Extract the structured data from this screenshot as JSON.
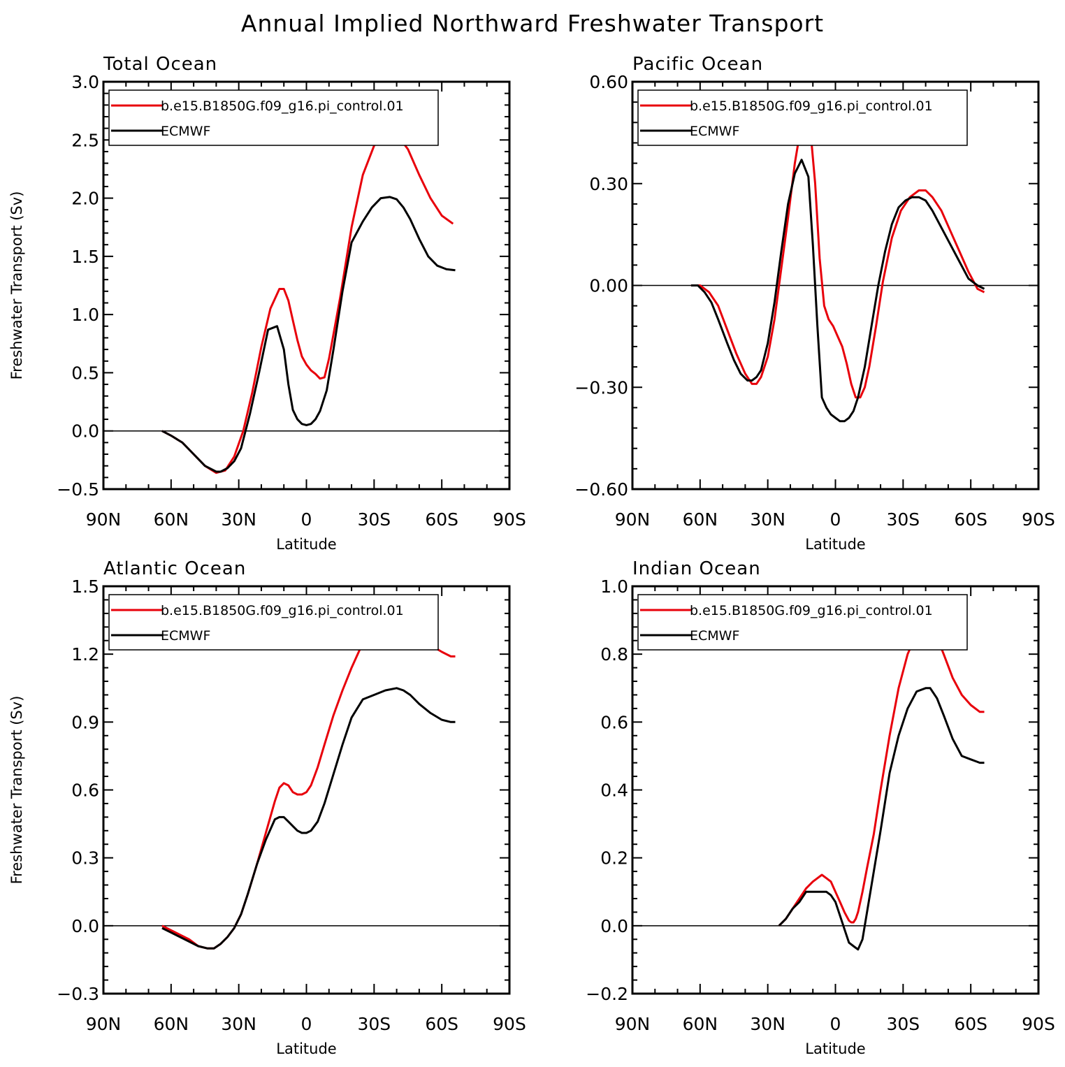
{
  "figure": {
    "title": "Annual Implied Northward Freshwater Transport"
  },
  "chart_data": [
    {
      "type": "line",
      "title": "Total Ocean",
      "xlabel": "Latitude",
      "ylabel": "Freshwater Transport (Sv)",
      "xlim": [
        -90,
        90
      ],
      "ylim": [
        -0.5,
        3.0
      ],
      "x_direction": "north-to-south (positive x = degrees south)",
      "xticks": [
        -90,
        -60,
        -30,
        0,
        30,
        60,
        90
      ],
      "xtick_labels": [
        "90N",
        "60N",
        "30N",
        "0",
        "30S",
        "60S",
        "90S"
      ],
      "yticks": [
        -0.5,
        0.0,
        0.5,
        1.0,
        1.5,
        2.0,
        2.5,
        3.0
      ],
      "ytick_labels": [
        "−0.5",
        "0.0",
        "0.5",
        "1.0",
        "1.5",
        "2.0",
        "2.5",
        "3.0"
      ],
      "zero_line": true,
      "legend": "top-left",
      "series": [
        {
          "name": "b.e15.B1850G.f09_g16.pi_control.01",
          "color": "#e8000b",
          "x": [
            -64,
            -60,
            -55,
            -50,
            -45,
            -40,
            -36,
            -32,
            -28,
            -24,
            -20,
            -16,
            -12,
            -10,
            -8,
            -6,
            -4,
            -2,
            0,
            2,
            4,
            6,
            8,
            10,
            15,
            20,
            25,
            30,
            35,
            40,
            45,
            50,
            55,
            60,
            65
          ],
          "y": [
            0,
            -0.04,
            -0.1,
            -0.2,
            -0.3,
            -0.36,
            -0.34,
            -0.22,
            0,
            0.33,
            0.72,
            1.05,
            1.22,
            1.22,
            1.12,
            0.95,
            0.78,
            0.64,
            0.57,
            0.52,
            0.49,
            0.45,
            0.46,
            0.62,
            1.15,
            1.75,
            2.2,
            2.45,
            2.55,
            2.55,
            2.42,
            2.2,
            2.0,
            1.85,
            1.78
          ]
        },
        {
          "name": "ECMWF",
          "color": "#000000",
          "x": [
            -64,
            -60,
            -55,
            -50,
            -45,
            -40,
            -38,
            -35,
            -32,
            -29,
            -25,
            -21,
            -17,
            -13,
            -10,
            -8,
            -6,
            -4,
            -2,
            0,
            2,
            4,
            6,
            9,
            12,
            16,
            20,
            25,
            29,
            33,
            37,
            40,
            43,
            46,
            50,
            54,
            58,
            62,
            66
          ],
          "y": [
            0,
            -0.04,
            -0.1,
            -0.2,
            -0.3,
            -0.35,
            -0.35,
            -0.32,
            -0.26,
            -0.15,
            0.15,
            0.5,
            0.87,
            0.9,
            0.7,
            0.4,
            0.18,
            0.1,
            0.06,
            0.05,
            0.06,
            0.1,
            0.17,
            0.35,
            0.7,
            1.2,
            1.62,
            1.8,
            1.92,
            2.0,
            2.01,
            1.99,
            1.92,
            1.82,
            1.65,
            1.5,
            1.42,
            1.39,
            1.38
          ]
        }
      ]
    },
    {
      "type": "line",
      "title": "Pacific Ocean",
      "xlabel": "Latitude",
      "ylabel": "",
      "xlim": [
        -90,
        90
      ],
      "ylim": [
        -0.6,
        0.6
      ],
      "x_direction": "north-to-south (positive x = degrees south)",
      "xticks": [
        -90,
        -60,
        -30,
        0,
        30,
        60,
        90
      ],
      "xtick_labels": [
        "90N",
        "60N",
        "30N",
        "0",
        "30S",
        "60S",
        "90S"
      ],
      "yticks": [
        -0.6,
        -0.3,
        0.0,
        0.3,
        0.6
      ],
      "ytick_labels": [
        "−0.60",
        "−0.30",
        "0.00",
        "0.30",
        "0.60"
      ],
      "zero_line": true,
      "legend": "top-left",
      "series": [
        {
          "name": "b.e15.B1850G.f09_g16.pi_control.01",
          "color": "#e8000b",
          "x": [
            -64,
            -60,
            -56,
            -52,
            -48,
            -44,
            -40,
            -37,
            -35,
            -33,
            -30,
            -27,
            -24,
            -21,
            -18,
            -15,
            -13,
            -11,
            -9,
            -7,
            -5,
            -3,
            -1,
            1,
            3,
            5,
            7,
            9,
            11,
            13,
            15,
            18,
            21,
            25,
            29,
            33,
            37,
            40,
            43,
            47,
            51,
            55,
            59,
            63,
            66
          ],
          "y": [
            0,
            0,
            -0.02,
            -0.06,
            -0.13,
            -0.2,
            -0.26,
            -0.29,
            -0.29,
            -0.27,
            -0.21,
            -0.1,
            0.05,
            0.2,
            0.36,
            0.48,
            0.5,
            0.45,
            0.3,
            0.08,
            -0.06,
            -0.1,
            -0.12,
            -0.15,
            -0.18,
            -0.23,
            -0.29,
            -0.33,
            -0.33,
            -0.3,
            -0.24,
            -0.12,
            0.01,
            0.14,
            0.22,
            0.26,
            0.28,
            0.28,
            0.26,
            0.22,
            0.16,
            0.1,
            0.04,
            -0.01,
            -0.02
          ]
        },
        {
          "name": "ECMWF",
          "color": "#000000",
          "x": [
            -64,
            -61,
            -58,
            -55,
            -52,
            -48,
            -45,
            -42,
            -39,
            -37,
            -35,
            -33,
            -30,
            -27,
            -24,
            -21,
            -18,
            -15,
            -12,
            -10,
            -8,
            -6,
            -4,
            -2,
            0,
            2,
            4,
            6,
            8,
            10,
            13,
            16,
            19,
            22,
            25,
            28,
            31,
            34,
            37,
            40,
            43,
            47,
            51,
            55,
            59,
            63,
            66
          ],
          "y": [
            0,
            0,
            -0.02,
            -0.05,
            -0.1,
            -0.17,
            -0.22,
            -0.26,
            -0.28,
            -0.28,
            -0.27,
            -0.25,
            -0.17,
            -0.05,
            0.1,
            0.24,
            0.33,
            0.37,
            0.32,
            0.12,
            -0.12,
            -0.33,
            -0.36,
            -0.38,
            -0.39,
            -0.4,
            -0.4,
            -0.39,
            -0.37,
            -0.33,
            -0.24,
            -0.12,
            0.0,
            0.1,
            0.18,
            0.23,
            0.25,
            0.26,
            0.26,
            0.25,
            0.22,
            0.17,
            0.12,
            0.07,
            0.02,
            0.0,
            -0.01
          ]
        }
      ]
    },
    {
      "type": "line",
      "title": "Atlantic Ocean",
      "xlabel": "Latitude",
      "ylabel": "Freshwater Transport (Sv)",
      "xlim": [
        -90,
        90
      ],
      "ylim": [
        -0.3,
        1.5
      ],
      "x_direction": "north-to-south (positive x = degrees south)",
      "xticks": [
        -90,
        -60,
        -30,
        0,
        30,
        60,
        90
      ],
      "xtick_labels": [
        "90N",
        "60N",
        "30N",
        "0",
        "30S",
        "60S",
        "90S"
      ],
      "yticks": [
        -0.3,
        0.0,
        0.3,
        0.6,
        0.9,
        1.2,
        1.5
      ],
      "ytick_labels": [
        "−0.3",
        "0.0",
        "0.3",
        "0.6",
        "0.9",
        "1.2",
        "1.5"
      ],
      "zero_line": true,
      "legend": "top-left",
      "series": [
        {
          "name": "b.e15.B1850G.f09_g16.pi_control.01",
          "color": "#e8000b",
          "x": [
            -64,
            -60,
            -56,
            -52,
            -48,
            -44,
            -41,
            -38,
            -35,
            -32,
            -29,
            -26,
            -22,
            -18,
            -14,
            -12,
            -10,
            -8,
            -6,
            -4,
            -2,
            0,
            2,
            5,
            8,
            12,
            16,
            20,
            25,
            30,
            35,
            40,
            45,
            50,
            55,
            60,
            64,
            66
          ],
          "y": [
            0,
            -0.02,
            -0.04,
            -0.06,
            -0.09,
            -0.1,
            -0.1,
            -0.08,
            -0.05,
            -0.01,
            0.05,
            0.14,
            0.27,
            0.41,
            0.55,
            0.61,
            0.63,
            0.62,
            0.59,
            0.58,
            0.58,
            0.59,
            0.62,
            0.7,
            0.8,
            0.93,
            1.04,
            1.14,
            1.25,
            1.33,
            1.38,
            1.39,
            1.35,
            1.29,
            1.24,
            1.21,
            1.19,
            1.19
          ]
        },
        {
          "name": "ECMWF",
          "color": "#000000",
          "x": [
            -64,
            -60,
            -56,
            -52,
            -48,
            -44,
            -41,
            -38,
            -35,
            -32,
            -29,
            -26,
            -22,
            -18,
            -14,
            -12,
            -10,
            -8,
            -6,
            -4,
            -2,
            0,
            2,
            5,
            8,
            12,
            16,
            20,
            25,
            30,
            35,
            40,
            43,
            46,
            50,
            55,
            60,
            64,
            66
          ],
          "y": [
            -0.01,
            -0.03,
            -0.05,
            -0.07,
            -0.09,
            -0.1,
            -0.1,
            -0.08,
            -0.05,
            -0.01,
            0.05,
            0.14,
            0.27,
            0.38,
            0.47,
            0.48,
            0.48,
            0.46,
            0.44,
            0.42,
            0.41,
            0.41,
            0.42,
            0.46,
            0.54,
            0.67,
            0.8,
            0.92,
            1.0,
            1.02,
            1.04,
            1.05,
            1.04,
            1.02,
            0.98,
            0.94,
            0.91,
            0.9,
            0.9
          ]
        }
      ]
    },
    {
      "type": "line",
      "title": "Indian Ocean",
      "xlabel": "Latitude",
      "ylabel": "",
      "xlim": [
        -90,
        90
      ],
      "ylim": [
        -0.2,
        1.0
      ],
      "x_direction": "north-to-south (positive x = degrees south)",
      "xticks": [
        -90,
        -60,
        -30,
        0,
        30,
        60,
        90
      ],
      "xtick_labels": [
        "90N",
        "60N",
        "30N",
        "0",
        "30S",
        "60S",
        "90S"
      ],
      "yticks": [
        -0.2,
        0.0,
        0.2,
        0.4,
        0.6,
        0.8,
        1.0
      ],
      "ytick_labels": [
        "−0.2",
        "0.0",
        "0.2",
        "0.4",
        "0.6",
        "0.8",
        "1.0"
      ],
      "zero_line": true,
      "legend": "top-left",
      "series": [
        {
          "name": "b.e15.B1850G.f09_g16.pi_control.01",
          "color": "#e8000b",
          "x": [
            -25,
            -22,
            -19,
            -16,
            -13,
            -10,
            -8,
            -6,
            -4,
            -2,
            0,
            2,
            4,
            6,
            7,
            8,
            9,
            10,
            12,
            14,
            17,
            20,
            24,
            28,
            32,
            36,
            40,
            42,
            45,
            48,
            52,
            56,
            60,
            64,
            66
          ],
          "y": [
            0,
            0.02,
            0.05,
            0.08,
            0.11,
            0.13,
            0.14,
            0.15,
            0.14,
            0.13,
            0.1,
            0.07,
            0.04,
            0.015,
            0.01,
            0.01,
            0.02,
            0.04,
            0.1,
            0.17,
            0.27,
            0.4,
            0.56,
            0.7,
            0.8,
            0.86,
            0.88,
            0.88,
            0.85,
            0.8,
            0.73,
            0.68,
            0.65,
            0.63,
            0.63
          ]
        },
        {
          "name": "ECMWF",
          "color": "#000000",
          "x": [
            -25,
            -22,
            -19,
            -16,
            -13,
            -10,
            -8,
            -6,
            -4,
            -2,
            0,
            2,
            4,
            6,
            8,
            10,
            12,
            14,
            17,
            20,
            24,
            28,
            32,
            36,
            40,
            42,
            45,
            48,
            52,
            56,
            60,
            64,
            66
          ],
          "y": [
            0,
            0.02,
            0.05,
            0.07,
            0.1,
            0.1,
            0.1,
            0.1,
            0.1,
            0.09,
            0.07,
            0.03,
            -0.01,
            -0.05,
            -0.06,
            -0.07,
            -0.04,
            0.04,
            0.16,
            0.28,
            0.45,
            0.56,
            0.64,
            0.69,
            0.7,
            0.7,
            0.67,
            0.62,
            0.55,
            0.5,
            0.49,
            0.48,
            0.48
          ]
        }
      ]
    }
  ]
}
